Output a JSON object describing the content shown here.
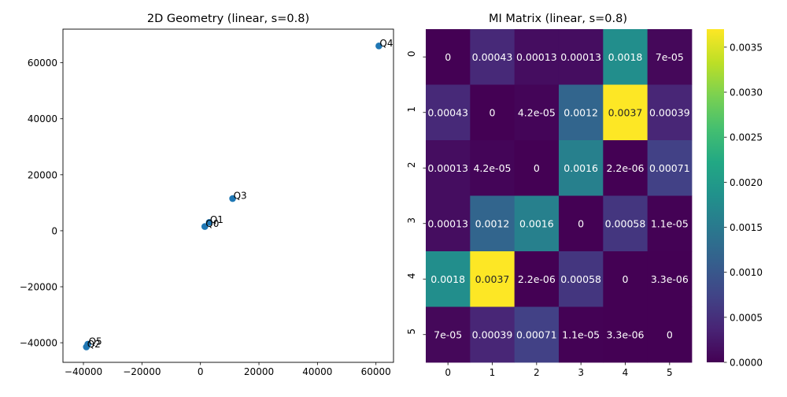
{
  "chart_data": [
    {
      "type": "scatter",
      "title": "2D Geometry (linear, s=0.8)",
      "xlim": [
        -47000,
        66000
      ],
      "ylim": [
        -47000,
        72000
      ],
      "xticks": [
        {
          "value": -40000,
          "label": "−40000"
        },
        {
          "value": -20000,
          "label": "−20000"
        },
        {
          "value": 0,
          "label": "0"
        },
        {
          "value": 20000,
          "label": "20000"
        },
        {
          "value": 40000,
          "label": "40000"
        },
        {
          "value": 60000,
          "label": "60000"
        }
      ],
      "yticks": [
        {
          "value": -40000,
          "label": "−40000"
        },
        {
          "value": -20000,
          "label": "−20000"
        },
        {
          "value": 0,
          "label": "0"
        },
        {
          "value": 20000,
          "label": "20000"
        },
        {
          "value": 40000,
          "label": "40000"
        },
        {
          "value": 60000,
          "label": "60000"
        }
      ],
      "point_color": "#1f77b4",
      "points": [
        {
          "label": "Q0",
          "x": 1500,
          "y": 1500
        },
        {
          "label": "Q1",
          "x": 3000,
          "y": 3000
        },
        {
          "label": "Q2",
          "x": -39000,
          "y": -41500
        },
        {
          "label": "Q3",
          "x": 11000,
          "y": 11500
        },
        {
          "label": "Q4",
          "x": 61000,
          "y": 66000
        },
        {
          "label": "Q5",
          "x": -38500,
          "y": -40500
        }
      ]
    },
    {
      "type": "heatmap",
      "title": "MI Matrix (linear, s=0.8)",
      "colormap": "viridis",
      "vmin": 0,
      "vmax": 0.0037,
      "row_labels": [
        "0",
        "1",
        "2",
        "3",
        "4",
        "5"
      ],
      "col_labels": [
        "0",
        "1",
        "2",
        "3",
        "4",
        "5"
      ],
      "values": [
        [
          0,
          0.00043,
          0.00013,
          0.00013,
          0.0018,
          7e-05
        ],
        [
          0.00043,
          0,
          4.2e-05,
          0.0012,
          0.0037,
          0.00039
        ],
        [
          0.00013,
          4.2e-05,
          0,
          0.0016,
          2.2e-06,
          0.00071
        ],
        [
          0.00013,
          0.0012,
          0.0016,
          0,
          0.00058,
          1.1e-05
        ],
        [
          0.0018,
          0.0037,
          2.2e-06,
          0.00058,
          0,
          3.3e-06
        ],
        [
          7e-05,
          0.00039,
          0.00071,
          1.1e-05,
          3.3e-06,
          0
        ]
      ],
      "cell_labels": [
        [
          "0",
          "0.00043",
          "0.00013",
          "0.00013",
          "0.0018",
          "7e-05"
        ],
        [
          "0.00043",
          "0",
          "4.2e-05",
          "0.0012",
          "0.0037",
          "0.00039"
        ],
        [
          "0.00013",
          "4.2e-05",
          "0",
          "0.0016",
          "2.2e-06",
          "0.00071"
        ],
        [
          "0.00013",
          "0.0012",
          "0.0016",
          "0",
          "0.00058",
          "1.1e-05"
        ],
        [
          "0.0018",
          "0.0037",
          "2.2e-06",
          "0.00058",
          "0",
          "3.3e-06"
        ],
        [
          "7e-05",
          "0.00039",
          "0.00071",
          "1.1e-05",
          "3.3e-06",
          "0"
        ]
      ],
      "colorbar_ticks": [
        {
          "value": 0,
          "label": "0.0000"
        },
        {
          "value": 0.0005,
          "label": "0.0005"
        },
        {
          "value": 0.001,
          "label": "0.0010"
        },
        {
          "value": 0.0015,
          "label": "0.0015"
        },
        {
          "value": 0.002,
          "label": "0.0020"
        },
        {
          "value": 0.0025,
          "label": "0.0025"
        },
        {
          "value": 0.003,
          "label": "0.0030"
        },
        {
          "value": 0.0035,
          "label": "0.0035"
        }
      ]
    }
  ]
}
